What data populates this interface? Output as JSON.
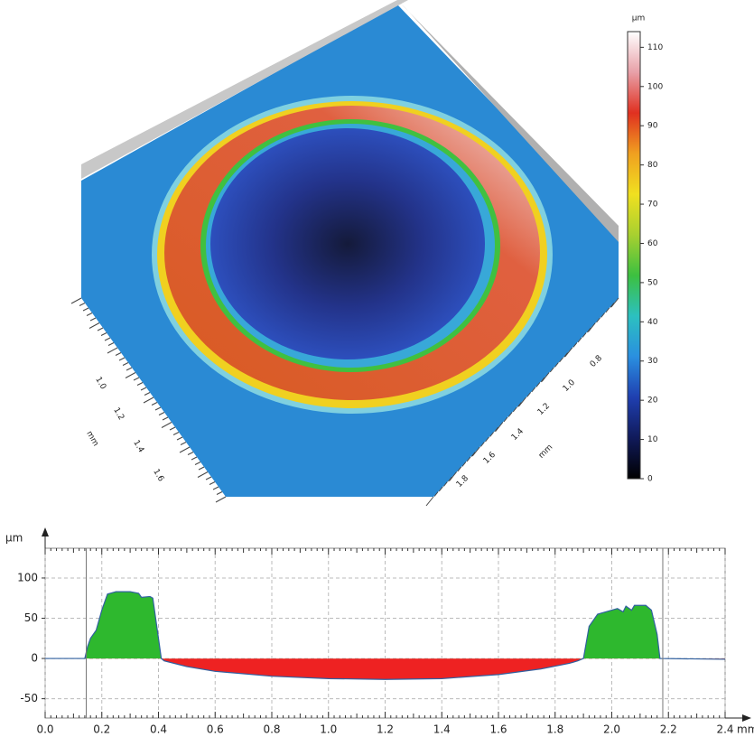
{
  "surface": {
    "colorbar": {
      "unit": "μm",
      "lim": [
        0,
        114
      ],
      "ticks": [
        0,
        10,
        20,
        30,
        40,
        50,
        60,
        70,
        80,
        90,
        100,
        110
      ],
      "colors": [
        "#000000",
        "#101a5a",
        "#1f3fb0",
        "#2a8fe0",
        "#2cc0c0",
        "#3cc040",
        "#a8d030",
        "#f0e020",
        "#f0a020",
        "#e03020",
        "#e8a0a8",
        "#ffffff"
      ]
    },
    "left_axis_labels": [
      "1.0",
      "1.2",
      "1.4",
      "1.6"
    ],
    "left_axis_unit": "mm",
    "right_axis_labels": [
      "0.8",
      "1.0",
      "1.2",
      "1.4",
      "1.6",
      "1.8"
    ],
    "right_axis_unit": "mm"
  },
  "chart_data": {
    "type": "area",
    "ylabel": "μm",
    "xlabel": "mm",
    "x": [
      0.0,
      0.14,
      0.15,
      0.16,
      0.18,
      0.2,
      0.22,
      0.25,
      0.3,
      0.33,
      0.34,
      0.37,
      0.38,
      0.41,
      0.42,
      0.5,
      0.6,
      0.8,
      1.0,
      1.2,
      1.4,
      1.6,
      1.75,
      1.85,
      1.88,
      1.9,
      1.92,
      1.95,
      2.0,
      2.02,
      2.04,
      2.05,
      2.07,
      2.08,
      2.12,
      2.14,
      2.16,
      2.17,
      2.4
    ],
    "values": [
      0,
      0,
      15,
      25,
      35,
      60,
      80,
      83,
      83,
      81,
      76,
      77,
      75,
      0,
      -3,
      -10,
      -16,
      -22,
      -25,
      -26,
      -25,
      -20,
      -13,
      -6,
      -3,
      0,
      40,
      55,
      60,
      62,
      58,
      65,
      60,
      66,
      66,
      60,
      30,
      0,
      -1
    ],
    "above_color": "#2eb82e",
    "below_color": "#ee2222",
    "line_color": "#3060a0",
    "cursors": [
      0.145,
      2.18
    ],
    "xlim": [
      0,
      2.4
    ],
    "ylim": [
      -74,
      137
    ],
    "xticks": [
      {
        "value": 0,
        "label": "0.0"
      },
      0.2,
      0.4,
      0.6,
      0.8,
      {
        "value": 1,
        "label": "1.0"
      },
      1.2,
      1.4,
      1.6,
      1.8,
      {
        "value": 2,
        "label": "2.0"
      },
      2.2,
      2.4
    ],
    "yticks": [
      -50,
      0,
      50,
      100
    ],
    "grid": true
  }
}
